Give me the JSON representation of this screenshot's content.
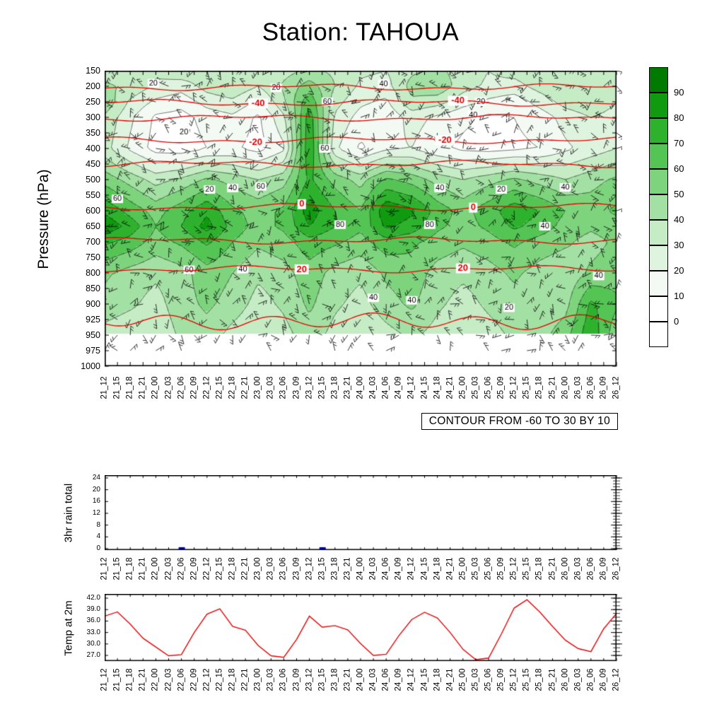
{
  "title": "Station: TAHOUA",
  "contour_note": "CONTOUR FROM -60 TO 30 BY 10",
  "colorbar": {
    "labels": [
      "90",
      "80",
      "70",
      "60",
      "50",
      "40",
      "30",
      "20",
      "10",
      "0"
    ],
    "colors_top_to_bottom": [
      "#017a01",
      "#109a10",
      "#2eb22e",
      "#54c454",
      "#7dd47d",
      "#a3e0a3",
      "#c5ecc5",
      "#dff4df",
      "#f3faf3",
      "#ffffff",
      "#ffffff"
    ],
    "band_colors_low_to_high": [
      "#ffffff",
      "#f3faf3",
      "#dff4df",
      "#c5ecc5",
      "#a3e0a3",
      "#7dd47d",
      "#54c454",
      "#2eb22e",
      "#109a10",
      "#017a01"
    ]
  },
  "chart_data": [
    {
      "panel": "pressure-time-section",
      "type": "heatmap",
      "ylabel": "Pressure (hPa)",
      "y_levels": [
        150,
        200,
        250,
        300,
        350,
        400,
        450,
        500,
        550,
        600,
        650,
        700,
        750,
        800,
        850,
        900,
        925,
        950,
        975,
        1000
      ],
      "x_labels": [
        "21_12",
        "21_15",
        "21_18",
        "21_21",
        "22_00",
        "22_03",
        "22_06",
        "22_09",
        "22_12",
        "22_15",
        "22_18",
        "22_21",
        "23_00",
        "23_03",
        "23_06",
        "23_09",
        "23_12",
        "23_15",
        "23_18",
        "23_21",
        "24_00",
        "24_03",
        "24_06",
        "24_09",
        "24_12",
        "24_15",
        "24_18",
        "24_21",
        "25_00",
        "25_03",
        "25_06",
        "25_09",
        "25_12",
        "25_15",
        "25_18",
        "25_21",
        "26_00",
        "26_03",
        "26_06",
        "26_09",
        "26_12"
      ],
      "humidity": {
        "note": "shaded field, 6-hourly columns 21_12..26_12",
        "pressures": [
          150,
          200,
          250,
          300,
          400,
          500,
          600,
          650,
          700,
          800,
          900,
          950
        ],
        "values": [
          [
            35,
            30,
            32,
            38,
            35,
            35,
            32,
            36,
            42,
            38,
            32,
            30,
            38,
            42,
            36,
            30,
            34,
            38,
            34,
            30,
            34
          ],
          [
            42,
            38,
            28,
            24,
            34,
            38,
            30,
            42,
            55,
            40,
            28,
            26,
            44,
            48,
            34,
            28,
            26,
            34,
            40,
            36,
            30
          ],
          [
            48,
            28,
            18,
            14,
            24,
            28,
            18,
            38,
            68,
            34,
            22,
            18,
            38,
            34,
            24,
            18,
            14,
            24,
            34,
            38,
            30
          ],
          [
            38,
            22,
            8,
            6,
            14,
            18,
            8,
            28,
            76,
            28,
            16,
            12,
            24,
            18,
            12,
            8,
            10,
            14,
            24,
            30,
            26
          ],
          [
            34,
            18,
            6,
            4,
            10,
            12,
            6,
            18,
            80,
            22,
            8,
            18,
            20,
            12,
            8,
            6,
            8,
            10,
            18,
            24,
            30
          ],
          [
            56,
            46,
            36,
            42,
            52,
            46,
            40,
            46,
            72,
            56,
            46,
            62,
            56,
            46,
            40,
            46,
            52,
            46,
            40,
            46,
            52
          ],
          [
            78,
            66,
            56,
            66,
            78,
            62,
            56,
            62,
            86,
            70,
            60,
            88,
            82,
            66,
            56,
            66,
            76,
            70,
            60,
            56,
            62
          ],
          [
            88,
            76,
            60,
            70,
            84,
            66,
            56,
            62,
            80,
            70,
            62,
            82,
            76,
            62,
            56,
            62,
            72,
            66,
            56,
            52,
            56
          ],
          [
            72,
            66,
            56,
            62,
            72,
            60,
            52,
            56,
            66,
            62,
            56,
            66,
            62,
            56,
            52,
            56,
            62,
            56,
            52,
            46,
            52
          ],
          [
            52,
            46,
            42,
            46,
            56,
            50,
            42,
            46,
            56,
            46,
            42,
            52,
            56,
            46,
            42,
            46,
            52,
            46,
            42,
            52,
            56
          ],
          [
            46,
            42,
            36,
            46,
            52,
            46,
            36,
            42,
            52,
            42,
            36,
            46,
            52,
            42,
            36,
            42,
            46,
            42,
            46,
            72,
            62
          ],
          [
            36,
            32,
            32,
            42,
            46,
            36,
            30,
            36,
            46,
            36,
            30,
            36,
            42,
            36,
            30,
            36,
            42,
            46,
            56,
            78,
            52
          ]
        ]
      },
      "red_contours": [
        {
          "value": -50,
          "p": 203,
          "labels": []
        },
        {
          "value": -40,
          "p": 253,
          "labels": [
            0.3,
            0.69
          ]
        },
        {
          "value": -30,
          "p": 302,
          "labels": []
        },
        {
          "value": -20,
          "p": 373,
          "labels": [
            0.295,
            0.665
          ]
        },
        {
          "value": -10,
          "p": 450,
          "labels": []
        },
        {
          "value": 0,
          "p": 588,
          "labels": [
            0.385,
            0.72
          ]
        },
        {
          "value": 10,
          "p": 696,
          "labels": []
        },
        {
          "value": 20,
          "p": 788,
          "labels": [
            0.385,
            0.7
          ]
        },
        {
          "value": 30,
          "p": 928,
          "labels": [],
          "amp": 9
        }
      ],
      "black_contour_labels": [
        {
          "t": "20",
          "x": 0.095,
          "p": 190
        },
        {
          "t": "20",
          "x": 0.335,
          "p": 205
        },
        {
          "t": "40",
          "x": 0.545,
          "p": 192
        },
        {
          "t": "60",
          "x": 0.435,
          "p": 250
        },
        {
          "t": "20",
          "x": 0.735,
          "p": 250
        },
        {
          "t": "40",
          "x": 0.72,
          "p": 292
        },
        {
          "t": "20",
          "x": 0.155,
          "p": 348
        },
        {
          "t": "60",
          "x": 0.43,
          "p": 400
        },
        {
          "t": "20",
          "x": 0.205,
          "p": 532
        },
        {
          "t": "40",
          "x": 0.25,
          "p": 527
        },
        {
          "t": "60",
          "x": 0.305,
          "p": 522
        },
        {
          "t": "60",
          "x": 0.025,
          "p": 562
        },
        {
          "t": "40",
          "x": 0.655,
          "p": 527
        },
        {
          "t": "20",
          "x": 0.775,
          "p": 532
        },
        {
          "t": "40",
          "x": 0.9,
          "p": 525
        },
        {
          "t": "80",
          "x": 0.46,
          "p": 645
        },
        {
          "t": "80",
          "x": 0.635,
          "p": 645
        },
        {
          "t": "40",
          "x": 0.86,
          "p": 650
        },
        {
          "t": "60",
          "x": 0.165,
          "p": 790
        },
        {
          "t": "40",
          "x": 0.27,
          "p": 788
        },
        {
          "t": "40",
          "x": 0.965,
          "p": 810
        },
        {
          "t": "40",
          "x": 0.6,
          "p": 888
        },
        {
          "t": "20",
          "x": 0.79,
          "p": 906
        },
        {
          "t": "40",
          "x": 0.525,
          "p": 880
        }
      ],
      "wind_barbs_overlay": true
    },
    {
      "panel": "rain",
      "type": "bar",
      "ylabel": "3hr rain total",
      "ylim": [
        0,
        24
      ],
      "yticks": [
        0,
        4,
        8,
        12,
        16,
        20,
        24
      ],
      "color": "#0000cc",
      "values": [
        0,
        0,
        0,
        0,
        0,
        0,
        0.5,
        0,
        0,
        0,
        0,
        0,
        0,
        0,
        0,
        0,
        0,
        0.5,
        0,
        0,
        0,
        0,
        0,
        0,
        0,
        0,
        0,
        0,
        0,
        0,
        0,
        0,
        0,
        0,
        0,
        0,
        0,
        0,
        0,
        0,
        0
      ]
    },
    {
      "panel": "temp",
      "type": "line",
      "ylabel": "Temp at 2m",
      "ylim": [
        27,
        42
      ],
      "ytick_labels": [
        "27.0",
        "30.0",
        "33.0",
        "36.0",
        "39.0",
        "42.0"
      ],
      "color": "#e60000",
      "values": [
        37.3,
        38.4,
        35.2,
        31.5,
        29.2,
        26.9,
        27.2,
        33.0,
        37.8,
        39.2,
        34.6,
        33.6,
        29.6,
        26.9,
        26.5,
        31.2,
        37.3,
        34.4,
        34.8,
        33.7,
        30.1,
        27.0,
        27.3,
        32.2,
        36.4,
        38.3,
        36.8,
        33.0,
        28.6,
        25.9,
        26.3,
        32.6,
        39.4,
        41.6,
        38.4,
        34.6,
        31.0,
        28.8,
        28.0,
        34.0,
        38.0
      ]
    }
  ]
}
